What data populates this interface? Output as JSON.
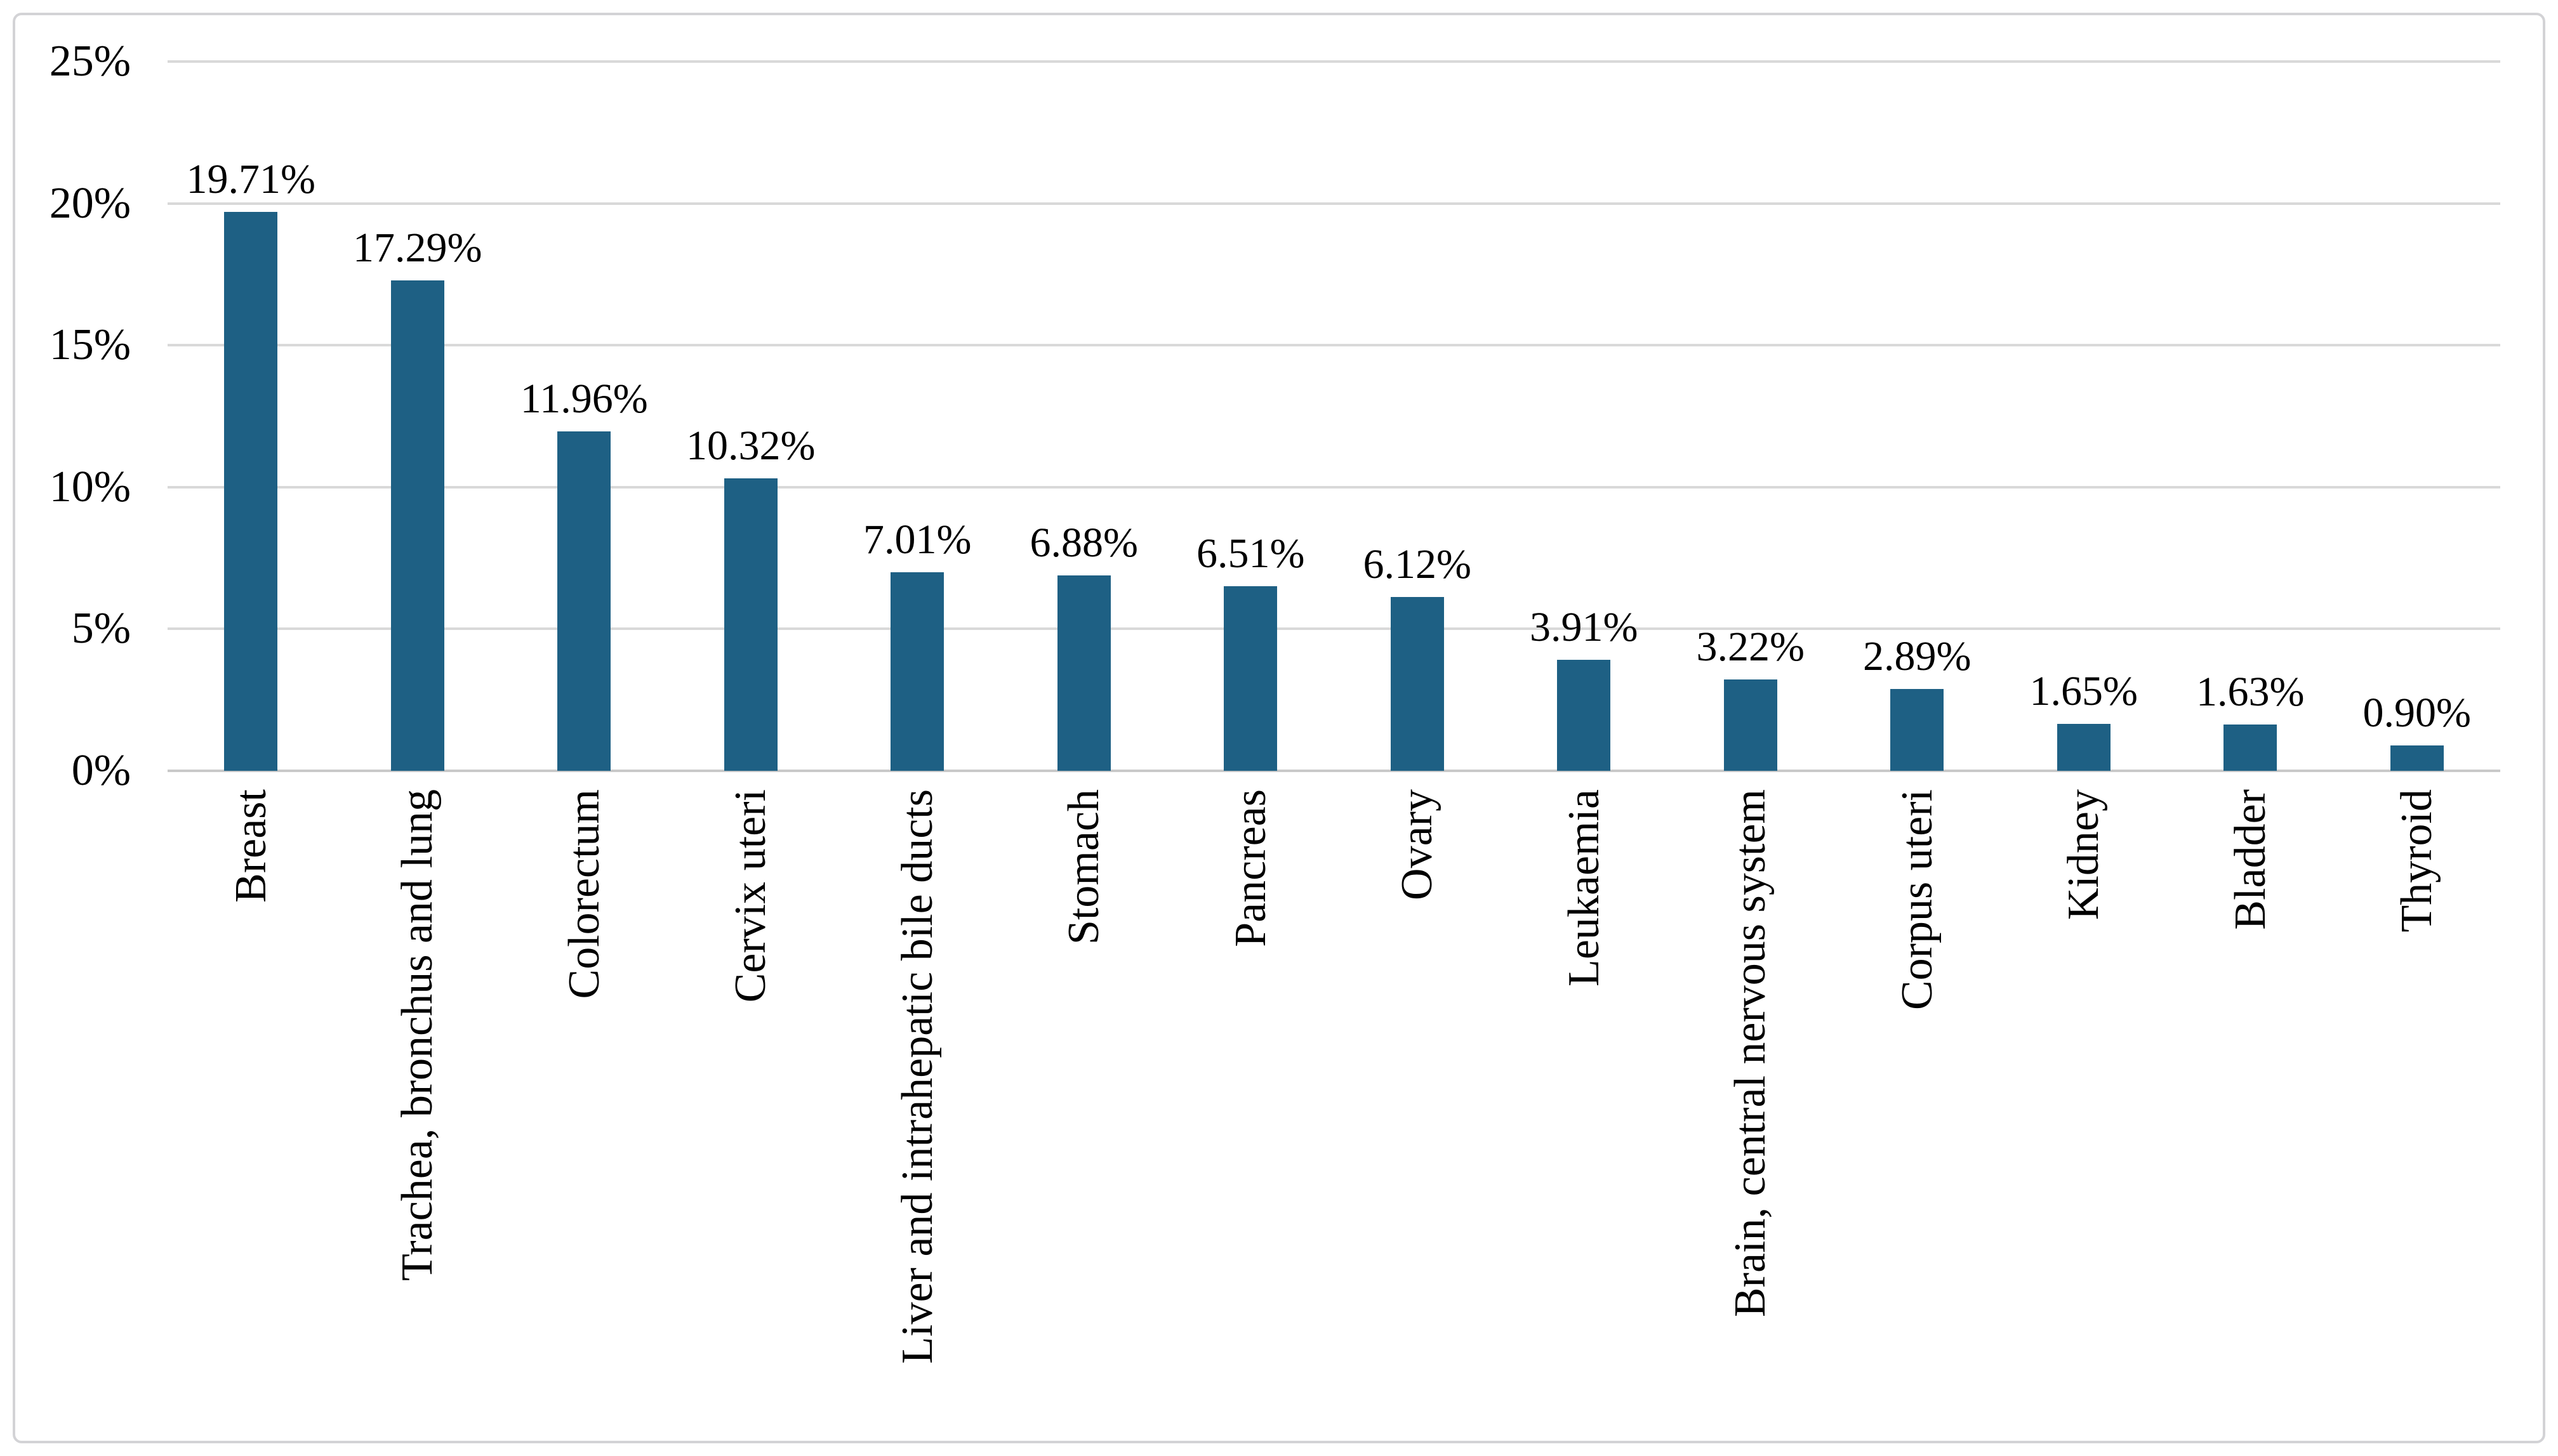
{
  "chart_data": {
    "type": "bar",
    "categories": [
      "Breast",
      "Trachea, bronchus and lung",
      "Colorectum",
      "Cervix uteri",
      "Liver and intrahepatic bile ducts",
      "Stomach",
      "Pancreas",
      "Ovary",
      "Leukaemia",
      "Brain, central nervous system",
      "Corpus uteri",
      "Kidney",
      "Bladder",
      "Thyroid"
    ],
    "values": [
      19.71,
      17.29,
      11.96,
      10.32,
      7.01,
      6.88,
      6.51,
      6.12,
      3.91,
      3.22,
      2.89,
      1.65,
      1.63,
      0.9
    ],
    "value_labels": [
      "19.71%",
      "17.29%",
      "11.96%",
      "10.32%",
      "7.01%",
      "6.88%",
      "6.51%",
      "6.12%",
      "3.91%",
      "3.22%",
      "2.89%",
      "1.65%",
      "1.63%",
      "0.90%"
    ],
    "title": "",
    "xlabel": "",
    "ylabel": "",
    "ylim": [
      0,
      25
    ],
    "yticks": [
      {
        "value": 0,
        "label": "0%"
      },
      {
        "value": 5,
        "label": "5%"
      },
      {
        "value": 10,
        "label": "10%"
      },
      {
        "value": 15,
        "label": "15%"
      },
      {
        "value": 20,
        "label": "20%"
      },
      {
        "value": 25,
        "label": "25%"
      }
    ],
    "grid": true,
    "legend": "none",
    "colors": {
      "bar": "#1E6084",
      "gridline": "#D9D9D9",
      "axis_line": "#C9C9C9",
      "frame_border": "#D3D3D6",
      "text": "#000000",
      "background": "#FFFFFF"
    }
  }
}
